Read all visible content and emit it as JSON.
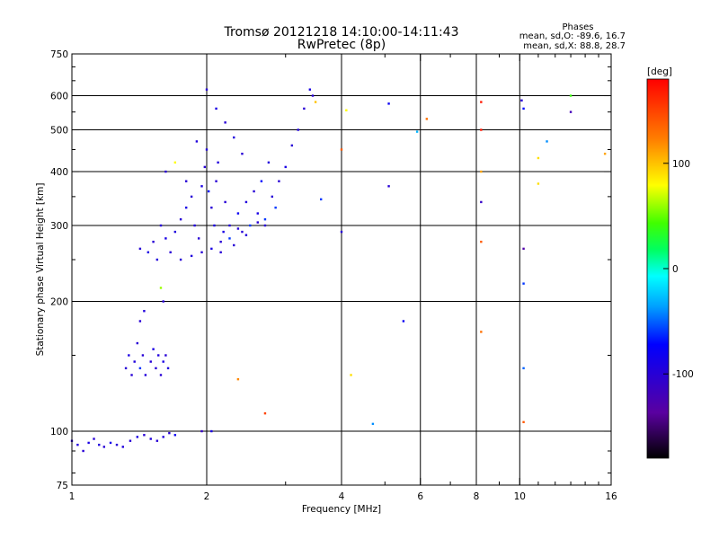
{
  "chart_data": {
    "type": "scatter",
    "title": "Tromsø 20121218 14:10:00-14:11:43",
    "subtitle": "RwPretec (8p)",
    "xlabel": "Frequency [MHz]",
    "ylabel": "Stationary phase Virtual Height [km]",
    "x_scale": "log",
    "y_scale": "log",
    "xlim": [
      1,
      16
    ],
    "ylim": [
      75,
      750
    ],
    "x_ticks": [
      1,
      2,
      4,
      6,
      8,
      10,
      16
    ],
    "y_ticks": [
      75,
      100,
      200,
      300,
      400,
      500,
      600,
      750
    ],
    "x_tick_labels": [
      "1",
      "2",
      "4",
      "6",
      "8",
      "10",
      "16"
    ],
    "y_tick_labels": [
      "75",
      "100",
      "200",
      "300",
      "400",
      "500",
      "600",
      "750"
    ],
    "grid": true,
    "stats": {
      "heading": "Phases",
      "line1": "mean, sd,O: -89.6, 16.7",
      "line2": "mean, sd,X:  88.8, 28.7"
    },
    "colorbar": {
      "label": "[deg]",
      "range": [
        -180,
        180
      ],
      "ticks": [
        -100,
        0,
        100
      ],
      "tick_labels": [
        "-100",
        "0",
        "100"
      ]
    },
    "points": [
      [
        1.0,
        95,
        -100
      ],
      [
        1.03,
        93,
        -95
      ],
      [
        1.06,
        90,
        -100
      ],
      [
        1.09,
        94,
        -90
      ],
      [
        1.12,
        96,
        -100
      ],
      [
        1.15,
        93,
        -95
      ],
      [
        1.18,
        92,
        -100
      ],
      [
        1.22,
        94,
        -85
      ],
      [
        1.26,
        93,
        -100
      ],
      [
        1.3,
        92,
        -95
      ],
      [
        1.35,
        95,
        -100
      ],
      [
        1.4,
        97,
        -90
      ],
      [
        1.45,
        98,
        -100
      ],
      [
        1.5,
        96,
        -95
      ],
      [
        1.55,
        95,
        -100
      ],
      [
        1.6,
        97,
        -95
      ],
      [
        1.65,
        99,
        -100
      ],
      [
        1.7,
        98,
        -80
      ],
      [
        1.95,
        100,
        -110
      ],
      [
        2.05,
        100,
        -90
      ],
      [
        1.32,
        140,
        -100
      ],
      [
        1.34,
        150,
        -90
      ],
      [
        1.36,
        135,
        -100
      ],
      [
        1.38,
        145,
        -95
      ],
      [
        1.4,
        160,
        -100
      ],
      [
        1.42,
        140,
        -60
      ],
      [
        1.44,
        150,
        -100
      ],
      [
        1.46,
        135,
        -95
      ],
      [
        1.5,
        145,
        -100
      ],
      [
        1.52,
        155,
        -90
      ],
      [
        1.54,
        140,
        -100
      ],
      [
        1.56,
        150,
        -95
      ],
      [
        1.58,
        135,
        -100
      ],
      [
        1.6,
        145,
        -90
      ],
      [
        1.62,
        150,
        -100
      ],
      [
        1.64,
        140,
        -95
      ],
      [
        1.42,
        180,
        -100
      ],
      [
        1.45,
        190,
        -95
      ],
      [
        1.58,
        215,
        60
      ],
      [
        1.6,
        200,
        -100
      ],
      [
        1.42,
        265,
        -100
      ],
      [
        1.48,
        260,
        -90
      ],
      [
        1.52,
        275,
        -100
      ],
      [
        1.55,
        250,
        -95
      ],
      [
        1.58,
        300,
        -100
      ],
      [
        1.62,
        280,
        -90
      ],
      [
        1.66,
        260,
        -100
      ],
      [
        1.7,
        290,
        -95
      ],
      [
        1.75,
        310,
        -100
      ],
      [
        1.8,
        330,
        -90
      ],
      [
        1.85,
        350,
        -100
      ],
      [
        1.88,
        300,
        -95
      ],
      [
        1.92,
        280,
        -100
      ],
      [
        1.95,
        370,
        -90
      ],
      [
        1.98,
        410,
        -100
      ],
      [
        2.0,
        450,
        -95
      ],
      [
        2.02,
        360,
        -70
      ],
      [
        2.05,
        330,
        -100
      ],
      [
        2.08,
        300,
        -90
      ],
      [
        2.1,
        380,
        -100
      ],
      [
        2.12,
        420,
        -95
      ],
      [
        2.15,
        260,
        -100
      ],
      [
        2.18,
        290,
        -90
      ],
      [
        2.2,
        340,
        -100
      ],
      [
        2.25,
        300,
        -95
      ],
      [
        2.3,
        270,
        -100
      ],
      [
        2.35,
        320,
        -80
      ],
      [
        2.4,
        290,
        -100
      ],
      [
        2.45,
        340,
        -95
      ],
      [
        2.5,
        300,
        -60
      ],
      [
        2.55,
        360,
        -100
      ],
      [
        2.6,
        320,
        -90
      ],
      [
        2.65,
        380,
        -70
      ],
      [
        2.7,
        300,
        -100
      ],
      [
        2.75,
        420,
        -95
      ],
      [
        2.8,
        350,
        -100
      ],
      [
        2.85,
        330,
        -60
      ],
      [
        2.9,
        380,
        -100
      ],
      [
        3.0,
        410,
        -90
      ],
      [
        3.1,
        460,
        -100
      ],
      [
        3.2,
        500,
        -95
      ],
      [
        3.3,
        560,
        -100
      ],
      [
        3.4,
        620,
        -90
      ],
      [
        3.45,
        600,
        -100
      ],
      [
        3.5,
        580,
        100
      ],
      [
        1.75,
        250,
        -100
      ],
      [
        1.85,
        255,
        -95
      ],
      [
        1.95,
        260,
        -100
      ],
      [
        2.05,
        265,
        -90
      ],
      [
        2.15,
        275,
        -100
      ],
      [
        2.25,
        280,
        -60
      ],
      [
        2.35,
        295,
        -100
      ],
      [
        2.45,
        285,
        -95
      ],
      [
        2.6,
        305,
        -100
      ],
      [
        2.7,
        310,
        -60
      ],
      [
        1.62,
        400,
        -100
      ],
      [
        1.7,
        420,
        80
      ],
      [
        1.8,
        380,
        -100
      ],
      [
        1.9,
        470,
        -95
      ],
      [
        2.0,
        620,
        -100
      ],
      [
        2.1,
        560,
        -90
      ],
      [
        2.2,
        520,
        -100
      ],
      [
        2.3,
        480,
        -95
      ],
      [
        2.4,
        440,
        -100
      ],
      [
        3.6,
        345,
        -60
      ],
      [
        4.0,
        450,
        140
      ],
      [
        4.1,
        555,
        80
      ],
      [
        4.0,
        290,
        -100
      ],
      [
        4.2,
        135,
        90
      ],
      [
        4.7,
        104,
        -40
      ],
      [
        5.1,
        575,
        -80
      ],
      [
        5.1,
        370,
        -100
      ],
      [
        5.5,
        180,
        -80
      ],
      [
        5.9,
        495,
        -30
      ],
      [
        6.2,
        530,
        130
      ],
      [
        8.2,
        580,
        170
      ],
      [
        8.2,
        500,
        170
      ],
      [
        8.2,
        400,
        110
      ],
      [
        8.2,
        340,
        -110
      ],
      [
        8.2,
        275,
        140
      ],
      [
        8.2,
        170,
        130
      ],
      [
        10.1,
        585,
        -100
      ],
      [
        10.2,
        560,
        -70
      ],
      [
        10.2,
        265,
        -130
      ],
      [
        10.2,
        220,
        -60
      ],
      [
        10.2,
        140,
        -50
      ],
      [
        10.2,
        105,
        140
      ],
      [
        11.0,
        375,
        90
      ],
      [
        11.0,
        430,
        90
      ],
      [
        11.5,
        470,
        -40
      ],
      [
        13.0,
        550,
        -120
      ],
      [
        13.0,
        600,
        40
      ],
      [
        15.5,
        440,
        110
      ],
      [
        2.7,
        110,
        150
      ],
      [
        2.35,
        132,
        120
      ]
    ]
  }
}
